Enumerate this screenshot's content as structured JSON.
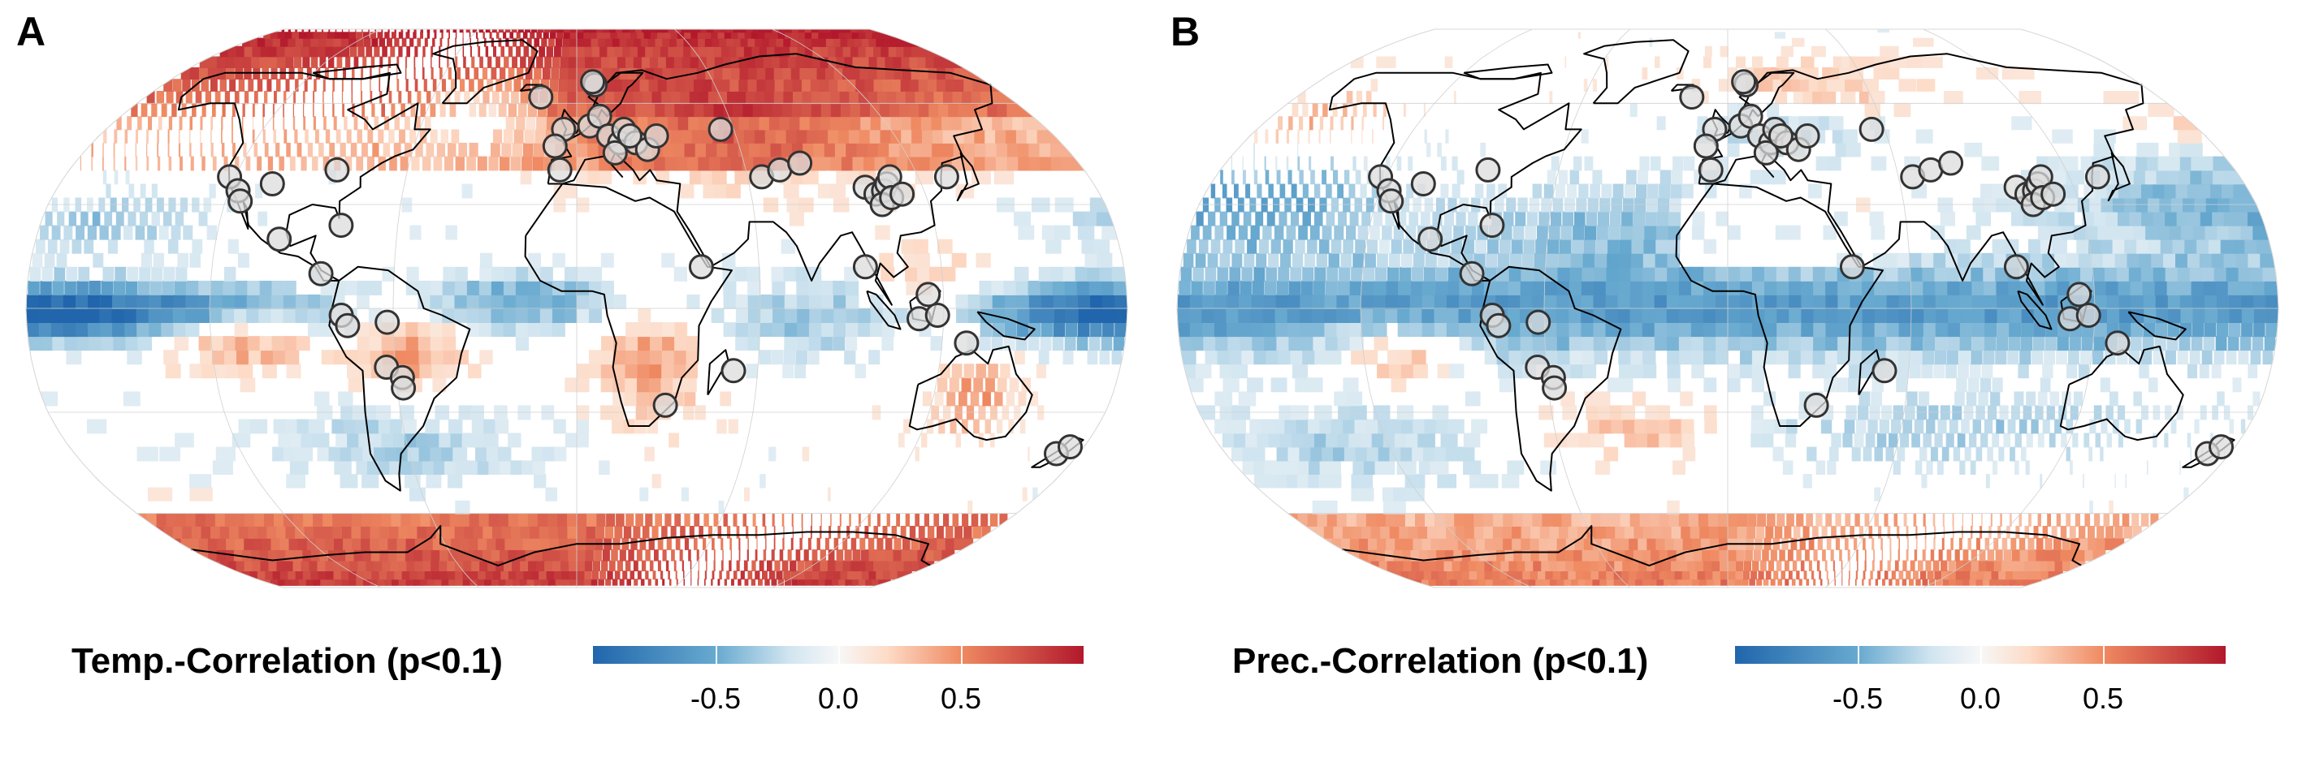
{
  "colors": {
    "negative": "#2166ac",
    "mid": "#f7f7f7",
    "positive": "#b2182b",
    "site_fill": "#dcdcdc",
    "site_stroke": "#333333",
    "coast": "#000000"
  },
  "colorbar": {
    "range": [
      -1,
      1
    ],
    "ticks": [
      -0.5,
      0.0,
      0.5
    ],
    "tick_labels": [
      "-0.5",
      "0.0",
      "0.5"
    ]
  },
  "panels": [
    {
      "letter": "A",
      "legend_title": "Temp.-Correlation (p<0.1)",
      "projection": "robinson",
      "field_pattern": "temperature"
    },
    {
      "letter": "B",
      "legend_title": "Prec.-Correlation (p<0.1)",
      "projection": "robinson",
      "field_pattern": "precipitation"
    }
  ],
  "sites": [
    {
      "lon": -122,
      "lat": 38
    },
    {
      "lon": -117,
      "lat": 34
    },
    {
      "lon": -115,
      "lat": 31
    },
    {
      "lon": -106,
      "lat": 36
    },
    {
      "lon": -85,
      "lat": 40
    },
    {
      "lon": -99,
      "lat": 20
    },
    {
      "lon": -79,
      "lat": 24
    },
    {
      "lon": -84,
      "lat": 10
    },
    {
      "lon": -77,
      "lat": -2
    },
    {
      "lon": -75,
      "lat": -5
    },
    {
      "lon": -62,
      "lat": -4
    },
    {
      "lon": -63,
      "lat": -17
    },
    {
      "lon": -58,
      "lat": -20
    },
    {
      "lon": -58,
      "lat": -23
    },
    {
      "lon": -15,
      "lat": 62
    },
    {
      "lon": -5,
      "lat": 52
    },
    {
      "lon": -6,
      "lat": 40
    },
    {
      "lon": -8,
      "lat": 47
    },
    {
      "lon": 5,
      "lat": 53
    },
    {
      "lon": 9,
      "lat": 56
    },
    {
      "lon": 8,
      "lat": 66
    },
    {
      "lon": 7,
      "lat": 67
    },
    {
      "lon": 12,
      "lat": 50
    },
    {
      "lon": 16,
      "lat": 48
    },
    {
      "lon": 18,
      "lat": 52
    },
    {
      "lon": 14,
      "lat": 45
    },
    {
      "lon": 22,
      "lat": 48
    },
    {
      "lon": 26,
      "lat": 46
    },
    {
      "lon": 30,
      "lat": 50
    },
    {
      "lon": 20,
      "lat": 50
    },
    {
      "lon": 55,
      "lat": 52
    },
    {
      "lon": 65,
      "lat": 38
    },
    {
      "lon": 72,
      "lat": 40
    },
    {
      "lon": 80,
      "lat": 42
    },
    {
      "lon": 41,
      "lat": 12
    },
    {
      "lon": 52,
      "lat": -18
    },
    {
      "lon": 30,
      "lat": -28
    },
    {
      "lon": 100,
      "lat": 35
    },
    {
      "lon": 103,
      "lat": 33
    },
    {
      "lon": 106,
      "lat": 34
    },
    {
      "lon": 108,
      "lat": 36
    },
    {
      "lon": 110,
      "lat": 38
    },
    {
      "lon": 104,
      "lat": 30
    },
    {
      "lon": 108,
      "lat": 32
    },
    {
      "lon": 112,
      "lat": 33
    },
    {
      "lon": 130,
      "lat": 38
    },
    {
      "lon": 95,
      "lat": 12
    },
    {
      "lon": 115,
      "lat": 4
    },
    {
      "lon": 112,
      "lat": -3
    },
    {
      "lon": 118,
      "lat": -2
    },
    {
      "lon": 128,
      "lat": -10
    },
    {
      "lon": 172,
      "lat": -42
    },
    {
      "lon": 175,
      "lat": -40
    }
  ]
}
